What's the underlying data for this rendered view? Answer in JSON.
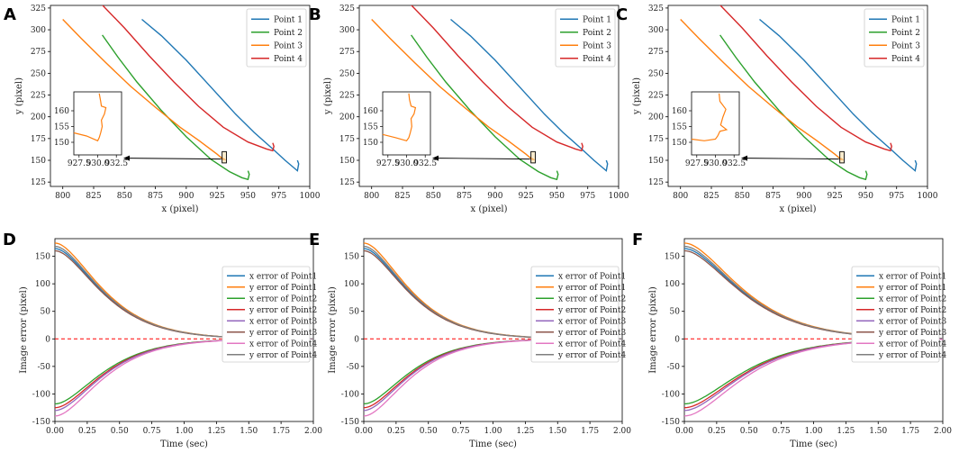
{
  "chart_data": [
    {
      "panel": "A",
      "type": "line",
      "xlabel": "x (pixel)",
      "ylabel": "y (pixel)",
      "xlim": [
        790,
        1000
      ],
      "ylim": [
        120,
        328
      ],
      "xticks": [
        800,
        825,
        850,
        875,
        900,
        925,
        950,
        975,
        1000
      ],
      "yticks": [
        125,
        150,
        175,
        200,
        225,
        250,
        275,
        300,
        325
      ],
      "legend": "top-right",
      "series": [
        {
          "name": "Point 1",
          "color": "#1f77b4",
          "x": [
            864,
            880,
            900,
            920,
            940,
            955,
            970,
            980,
            990,
            991,
            990
          ],
          "y": [
            312,
            293,
            265,
            234,
            203,
            182,
            163,
            150,
            138,
            146,
            150
          ]
        },
        {
          "name": "Point 2",
          "color": "#2ca02c",
          "x": [
            832,
            845,
            860,
            880,
            900,
            920,
            935,
            945,
            950,
            951,
            950
          ],
          "y": [
            294,
            268,
            240,
            207,
            177,
            151,
            137,
            130,
            128,
            134,
            138
          ]
        },
        {
          "name": "Point 3",
          "color": "#ff7f0e",
          "x": [
            800,
            815,
            835,
            855,
            875,
            895,
            910,
            925,
            930,
            931,
            930,
            929.5
          ],
          "y": [
            312,
            290,
            262,
            235,
            211,
            188,
            173,
            157,
            151,
            151,
            152,
            151
          ]
        },
        {
          "name": "Point 4",
          "color": "#d62728",
          "x": [
            831,
            850,
            870,
            890,
            910,
            930,
            950,
            965,
            970,
            971,
            970
          ],
          "y": [
            330,
            302,
            270,
            240,
            212,
            188,
            171,
            163,
            161,
            166,
            170
          ]
        }
      ],
      "inset": {
        "xlim": [
          926.8,
          933.2
        ],
        "ylim": [
          146,
          166
        ],
        "xticks": [
          927.5,
          930.0,
          932.5
        ],
        "yticks": [
          150,
          155,
          160
        ],
        "series": [
          {
            "name": "Point 3 (zoom)",
            "color": "#ff7f0e",
            "x": [
              926.8,
              928.5,
              930.0,
              930.2,
              930.4,
              930.6,
              930.5,
              930.9,
              931.1,
              930.5,
              930.4,
              930.2
            ],
            "y": [
              153,
              152,
              150.5,
              151.5,
              153,
              155,
              157,
              159,
              161,
              161.5,
              163,
              165.5
            ]
          }
        ]
      }
    },
    {
      "panel": "B",
      "type": "line",
      "xlabel": "x (pixel)",
      "ylabel": "y (pixel)",
      "xlim": [
        790,
        1000
      ],
      "ylim": [
        120,
        328
      ],
      "xticks": [
        800,
        825,
        850,
        875,
        900,
        925,
        950,
        975,
        1000
      ],
      "yticks": [
        125,
        150,
        175,
        200,
        225,
        250,
        275,
        300,
        325
      ],
      "legend": "top-right",
      "series": [
        {
          "name": "Point 1",
          "color": "#1f77b4",
          "x": [
            864,
            880,
            900,
            920,
            940,
            955,
            970,
            980,
            990,
            991,
            990
          ],
          "y": [
            312,
            293,
            265,
            234,
            203,
            182,
            163,
            150,
            138,
            146,
            150
          ]
        },
        {
          "name": "Point 2",
          "color": "#2ca02c",
          "x": [
            832,
            845,
            860,
            880,
            900,
            920,
            935,
            945,
            950,
            951,
            950
          ],
          "y": [
            294,
            268,
            240,
            207,
            177,
            151,
            137,
            130,
            128,
            134,
            138
          ]
        },
        {
          "name": "Point 3",
          "color": "#ff7f0e",
          "x": [
            800,
            815,
            835,
            855,
            875,
            895,
            910,
            925,
            930,
            931,
            930,
            929.5
          ],
          "y": [
            312,
            290,
            262,
            235,
            211,
            188,
            173,
            157,
            151,
            151,
            152,
            151
          ]
        },
        {
          "name": "Point 4",
          "color": "#d62728",
          "x": [
            831,
            850,
            870,
            890,
            910,
            930,
            950,
            965,
            970,
            971,
            970
          ],
          "y": [
            330,
            302,
            270,
            240,
            212,
            188,
            171,
            163,
            161,
            166,
            170
          ]
        }
      ],
      "inset": {
        "xlim": [
          926.8,
          933.2
        ],
        "ylim": [
          146,
          166
        ],
        "xticks": [
          927.5,
          930.0,
          932.5
        ],
        "yticks": [
          150,
          155,
          160
        ],
        "series": [
          {
            "name": "Point 3 (zoom)",
            "color": "#ff7f0e",
            "x": [
              926.8,
              928.5,
              930.0,
              930.3,
              930.5,
              930.7,
              930.6,
              931.0,
              931.2,
              930.6,
              930.4,
              930.3
            ],
            "y": [
              152.5,
              151.5,
              150.5,
              151.5,
              153,
              155,
              157.5,
              159,
              161,
              161.5,
              163.5,
              165.5
            ]
          }
        ]
      }
    },
    {
      "panel": "C",
      "type": "line",
      "xlabel": "x (pixel)",
      "ylabel": "y (pixel)",
      "xlim": [
        790,
        1000
      ],
      "ylim": [
        120,
        328
      ],
      "xticks": [
        800,
        825,
        850,
        875,
        900,
        925,
        950,
        975,
        1000
      ],
      "yticks": [
        125,
        150,
        175,
        200,
        225,
        250,
        275,
        300,
        325
      ],
      "legend": "top-right",
      "series": [
        {
          "name": "Point 1",
          "color": "#1f77b4",
          "x": [
            864,
            880,
            900,
            920,
            940,
            955,
            970,
            980,
            990,
            991,
            990
          ],
          "y": [
            312,
            293,
            265,
            234,
            203,
            182,
            163,
            150,
            138,
            146,
            150
          ]
        },
        {
          "name": "Point 2",
          "color": "#2ca02c",
          "x": [
            832,
            845,
            860,
            880,
            900,
            920,
            935,
            945,
            950,
            951,
            950
          ],
          "y": [
            294,
            268,
            240,
            207,
            177,
            151,
            137,
            130,
            128,
            134,
            138
          ]
        },
        {
          "name": "Point 3",
          "color": "#ff7f0e",
          "x": [
            800,
            815,
            835,
            855,
            875,
            895,
            910,
            925,
            930,
            931,
            930,
            929.5
          ],
          "y": [
            312,
            290,
            262,
            235,
            211,
            188,
            173,
            157,
            151,
            151,
            152,
            151
          ]
        },
        {
          "name": "Point 4",
          "color": "#d62728",
          "x": [
            831,
            850,
            870,
            890,
            910,
            930,
            950,
            965,
            970,
            971,
            970
          ],
          "y": [
            330,
            302,
            270,
            240,
            212,
            188,
            171,
            163,
            161,
            166,
            170
          ]
        }
      ],
      "inset": {
        "xlim": [
          926.8,
          933.2
        ],
        "ylim": [
          146,
          166
        ],
        "xticks": [
          927.5,
          930.0,
          932.5
        ],
        "yticks": [
          150,
          155,
          160
        ],
        "series": [
          {
            "name": "Point 3 (zoom)",
            "color": "#ff7f0e",
            "x": [
              926.8,
              928.5,
              930.0,
              930.3,
              930.6,
              931.5,
              930.7,
              931.0,
              931.4,
              930.6,
              930.5
            ],
            "y": [
              151,
              150.5,
              151,
              152,
              153.5,
              154,
              155.5,
              158,
              160.5,
              163,
              165.5
            ]
          }
        ]
      }
    },
    {
      "panel": "D",
      "type": "line",
      "xlabel": "Time (sec)",
      "ylabel": "Image error (pixel)",
      "xlim": [
        0,
        2.0
      ],
      "ylim": [
        -150,
        182
      ],
      "xticks": [
        0.0,
        0.25,
        0.5,
        0.75,
        1.0,
        1.25,
        1.5,
        1.75,
        2.0
      ],
      "xtick_labels": [
        "0.00",
        "0.25",
        "0.50",
        "0.75",
        "1.00",
        "1.25",
        "1.50",
        "1.75",
        "2.00"
      ],
      "yticks": [
        -150,
        -100,
        -50,
        0,
        50,
        100,
        150
      ],
      "legend": "center-right",
      "zero_line": {
        "y": 0,
        "color": "#ff0000",
        "style": "dashed"
      },
      "decay_tau": 0.23,
      "series": [
        {
          "name": "x error of Point1",
          "color": "#1f77b4",
          "initial": 164
        },
        {
          "name": "y error of Point1",
          "color": "#ff7f0e",
          "initial": 174
        },
        {
          "name": "x error of Point2",
          "color": "#2ca02c",
          "initial": -118
        },
        {
          "name": "y error of Point2",
          "color": "#d62728",
          "initial": -125
        },
        {
          "name": "x error of Point3",
          "color": "#9467bd",
          "initial": -130
        },
        {
          "name": "y error of Point3",
          "color": "#8c564b",
          "initial": 160
        },
        {
          "name": "x error of Point4",
          "color": "#e377c2",
          "initial": -140
        },
        {
          "name": "y error of Point4",
          "color": "#7f7f7f",
          "initial": 168
        }
      ]
    },
    {
      "panel": "E",
      "type": "line",
      "xlabel": "Time (sec)",
      "ylabel": "Image error (pixel)",
      "xlim": [
        0,
        2.0
      ],
      "ylim": [
        -150,
        182
      ],
      "xticks": [
        0.0,
        0.25,
        0.5,
        0.75,
        1.0,
        1.25,
        1.5,
        1.75,
        2.0
      ],
      "xtick_labels": [
        "0.00",
        "0.25",
        "0.50",
        "0.75",
        "1.00",
        "1.25",
        "1.50",
        "1.75",
        "2.00"
      ],
      "yticks": [
        -150,
        -100,
        -50,
        0,
        50,
        100,
        150
      ],
      "legend": "center-right",
      "zero_line": {
        "y": 0,
        "color": "#ff0000",
        "style": "dashed"
      },
      "decay_tau": 0.22,
      "series": [
        {
          "name": "x error of Point1",
          "color": "#1f77b4",
          "initial": 164
        },
        {
          "name": "y error of Point1",
          "color": "#ff7f0e",
          "initial": 174
        },
        {
          "name": "x error of Point2",
          "color": "#2ca02c",
          "initial": -118
        },
        {
          "name": "y error of Point2",
          "color": "#d62728",
          "initial": -125
        },
        {
          "name": "x error of Point3",
          "color": "#9467bd",
          "initial": -130
        },
        {
          "name": "y error of Point3",
          "color": "#8c564b",
          "initial": 160
        },
        {
          "name": "x error of Point4",
          "color": "#e377c2",
          "initial": -140
        },
        {
          "name": "y error of Point4",
          "color": "#7f7f7f",
          "initial": 168
        }
      ]
    },
    {
      "panel": "F",
      "type": "line",
      "xlabel": "Time (sec)",
      "ylabel": "Image error (pixel)",
      "xlim": [
        0,
        2.0
      ],
      "ylim": [
        -150,
        182
      ],
      "xticks": [
        0.0,
        0.25,
        0.5,
        0.75,
        1.0,
        1.25,
        1.5,
        1.75,
        2.0
      ],
      "xtick_labels": [
        "0.00",
        "0.25",
        "0.50",
        "0.75",
        "1.00",
        "1.25",
        "1.50",
        "1.75",
        "2.00"
      ],
      "yticks": [
        -150,
        -100,
        -50,
        0,
        50,
        100,
        150
      ],
      "legend": "center-right",
      "zero_line": {
        "y": 0,
        "color": "#ff0000",
        "style": "dashed"
      },
      "decay_tau": 0.28,
      "series": [
        {
          "name": "x error of Point1",
          "color": "#1f77b4",
          "initial": 164
        },
        {
          "name": "y error of Point1",
          "color": "#ff7f0e",
          "initial": 174
        },
        {
          "name": "x error of Point2",
          "color": "#2ca02c",
          "initial": -118
        },
        {
          "name": "y error of Point2",
          "color": "#d62728",
          "initial": -125
        },
        {
          "name": "x error of Point3",
          "color": "#9467bd",
          "initial": -130
        },
        {
          "name": "y error of Point3",
          "color": "#8c564b",
          "initial": 160
        },
        {
          "name": "x error of Point4",
          "color": "#e377c2",
          "initial": -140
        },
        {
          "name": "y error of Point4",
          "color": "#7f7f7f",
          "initial": 168
        }
      ]
    }
  ]
}
